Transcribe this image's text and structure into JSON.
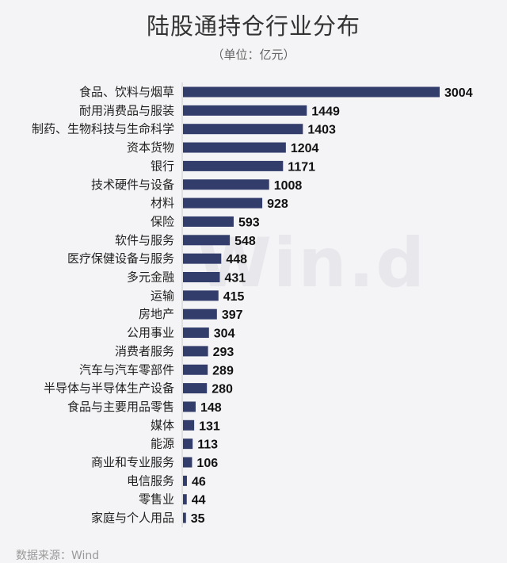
{
  "title": "陆股通持仓行业分布",
  "subtitle": "（单位：亿元）",
  "watermark": "Win.d",
  "source": "数据来源：Wind",
  "colors": {
    "bar": "#333d6b",
    "label": "#111111",
    "category": "#222222"
  },
  "chart_data": {
    "type": "bar",
    "orientation": "horizontal",
    "title": "陆股通持仓行业分布",
    "subtitle": "（单位：亿元）",
    "categories": [
      "食品、饮料与烟草",
      "耐用消费品与服装",
      "制药、生物科技与生命科学",
      "资本货物",
      "银行",
      "技术硬件与设备",
      "材料",
      "保险",
      "软件与服务",
      "医疗保健设备与服务",
      "多元金融",
      "运输",
      "房地产",
      "公用事业",
      "消费者服务",
      "汽车与汽车零部件",
      "半导体与半导体生产设备",
      "食品与主要用品零售",
      "媒体",
      "能源",
      "商业和专业服务",
      "电信服务",
      "零售业",
      "家庭与个人用品"
    ],
    "values": [
      3004,
      1449,
      1403,
      1204,
      1171,
      1008,
      928,
      593,
      548,
      448,
      431,
      415,
      397,
      304,
      293,
      289,
      280,
      148,
      131,
      113,
      106,
      46,
      44,
      35
    ],
    "xlim": [
      0,
      3004
    ],
    "grid": false,
    "data_labels": true
  }
}
